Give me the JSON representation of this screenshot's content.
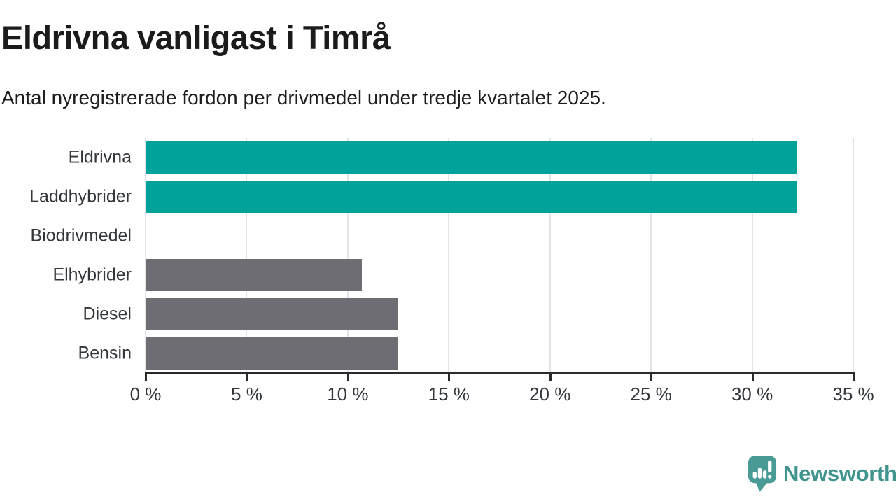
{
  "chart_data": {
    "type": "bar",
    "orientation": "horizontal",
    "title": "Eldrivna vanligast i Timrå",
    "subtitle": "Antal nyregistrerade fordon per drivmedel under tredje kvartalet 2025.",
    "categories": [
      "Eldrivna",
      "Laddhybrider",
      "Biodrivmedel",
      "Elhybrider",
      "Diesel",
      "Bensin"
    ],
    "values": [
      32.2,
      32.2,
      0,
      10.7,
      12.5,
      12.5
    ],
    "unit": "%",
    "xlim": [
      0,
      35
    ],
    "x_ticks": [
      0,
      5,
      10,
      15,
      20,
      25,
      30,
      35
    ],
    "x_tick_labels": [
      "0 %",
      "5 %",
      "10 %",
      "15 %",
      "20 %",
      "25 %",
      "30 %",
      "35 %"
    ],
    "bar_colors": [
      "#00a29a",
      "#00a29a",
      "#6e6d73",
      "#6e6d73",
      "#6e6d73",
      "#6e6d73"
    ],
    "series_colors": {
      "electric": "#00a29a",
      "other": "#6e6d73"
    },
    "grid": "vertical",
    "gridline_color": "#e4e4e7",
    "axis_color": "#2b2b2b",
    "legend": "none"
  },
  "branding": {
    "logo_text": "Newsworthy",
    "logo_text_color": "#3f948e",
    "logo_icon_color": "#4a9b95",
    "logo_icon": "speech-bubble-bar-chart-exclamation"
  }
}
